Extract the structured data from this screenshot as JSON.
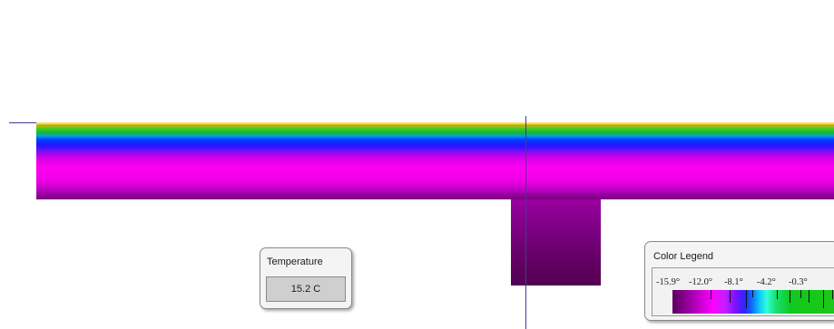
{
  "probe": {
    "title": "Temperature",
    "value": "15.2 C"
  },
  "legend": {
    "title": "Color Legend",
    "tick_labels": [
      "-15.9°",
      "-12.0°",
      "-8.1°",
      "-4.2°",
      "-0.3°"
    ]
  },
  "colors": {
    "probe_panel_bg": "#f4f4f4",
    "probe_value_bg": "#cfcfcf",
    "reference_line": "#3b3f8f"
  },
  "icons": {
    "probe": "none",
    "legend": "none"
  }
}
